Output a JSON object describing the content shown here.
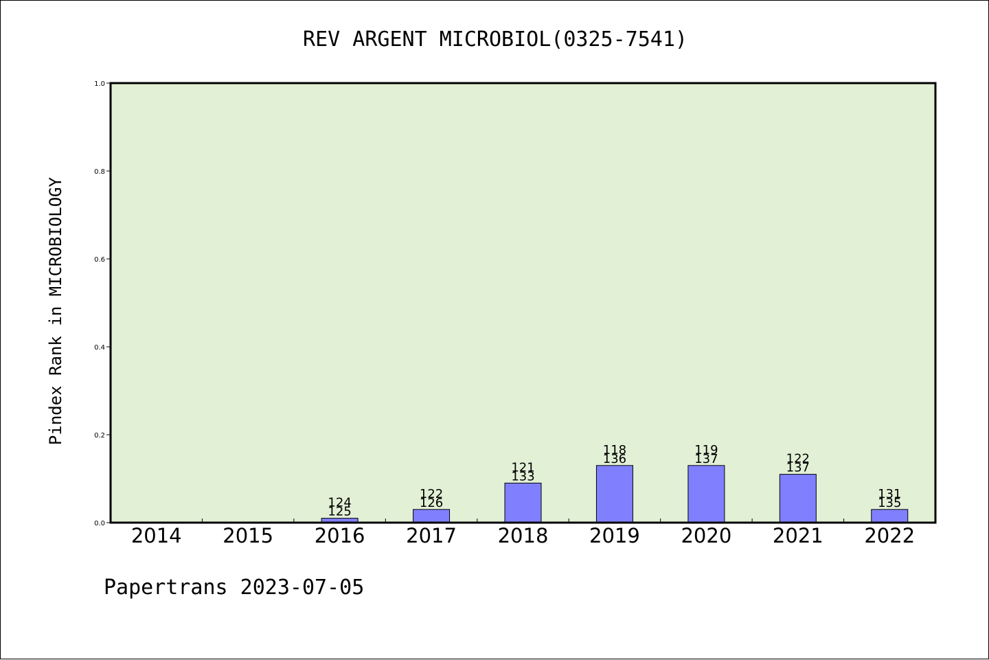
{
  "chart_data": {
    "type": "bar",
    "title": "REV ARGENT MICROBIOL(0325-7541)",
    "xlabel": "",
    "ylabel": "Pindex Rank in MICROBIOLOGY",
    "ylim": [
      0,
      1.0
    ],
    "yticks": [
      "0.0",
      "0.2",
      "0.4",
      "0.6",
      "0.8",
      "1.0"
    ],
    "categories": [
      "2014",
      "2015",
      "2016",
      "2017",
      "2018",
      "2019",
      "2020",
      "2021",
      "2022"
    ],
    "values": [
      null,
      null,
      0.01,
      0.03,
      0.09,
      0.13,
      0.13,
      0.11,
      0.03
    ],
    "labels_top": [
      "",
      "",
      "124",
      "122",
      "121",
      "118",
      "119",
      "122",
      "131"
    ],
    "labels_bottom": [
      "",
      "",
      "125",
      "126",
      "133",
      "136",
      "137",
      "137",
      "135"
    ],
    "grid": false,
    "colors": {
      "plot_background": "#e2f0d6",
      "bar_fill": "#8080ff",
      "bar_stroke": "#000000"
    }
  },
  "footer": {
    "text": "Papertrans 2023-07-05"
  }
}
